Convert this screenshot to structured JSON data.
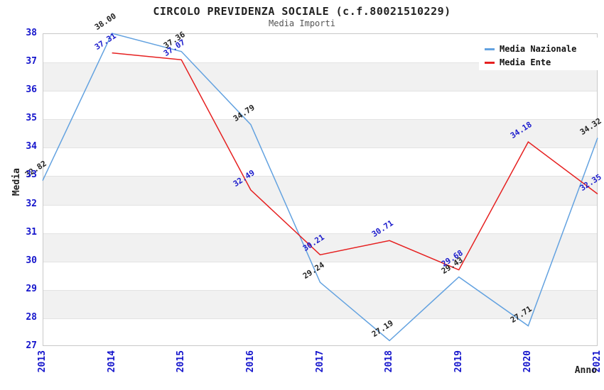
{
  "chart_data": {
    "type": "line",
    "title": "CIRCOLO PREVIDENZA SOCIALE (c.f.80021510229)",
    "subtitle": "Media Importi",
    "xlabel": "Anno",
    "ylabel": "Media",
    "x": [
      2013,
      2014,
      2015,
      2016,
      2017,
      2018,
      2019,
      2020,
      2021
    ],
    "series": [
      {
        "name": "Media Nazionale",
        "color": "#63a2e0",
        "label_color": "#222222",
        "values": [
          32.82,
          38.0,
          37.36,
          34.79,
          29.24,
          27.19,
          29.43,
          27.71,
          34.32
        ]
      },
      {
        "name": "Media Ente",
        "color": "#e62020",
        "label_color": "#1c1ccc",
        "values": [
          null,
          37.31,
          37.07,
          32.49,
          30.21,
          30.71,
          29.68,
          34.18,
          32.35
        ]
      }
    ],
    "ylim": [
      27,
      38
    ],
    "y_ticks": [
      27,
      28,
      29,
      30,
      31,
      32,
      33,
      34,
      35,
      36,
      37,
      38
    ],
    "grid": true,
    "legend_position": "top-right",
    "band_colors": [
      "#ffffff",
      "#f1f1f1"
    ],
    "tick_label_color": "#1515cc"
  }
}
